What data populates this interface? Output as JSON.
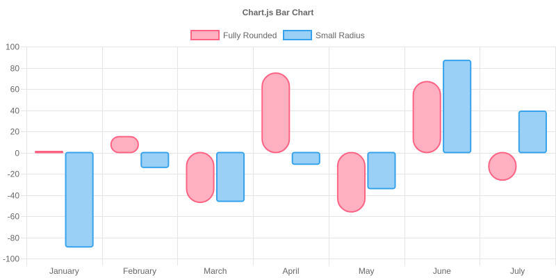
{
  "chart_data": {
    "type": "bar",
    "title": "Chart.js Bar Chart",
    "categories": [
      "January",
      "February",
      "March",
      "April",
      "May",
      "June",
      "July"
    ],
    "ylim": [
      -100,
      100
    ],
    "yticks": [
      100,
      80,
      60,
      40,
      20,
      0,
      -20,
      -40,
      -60,
      -80,
      -100
    ],
    "grid": true,
    "legend_position": "top",
    "series": [
      {
        "name": "Fully Rounded",
        "border_color": "#ff6384",
        "fill_color": "#ffb1c1",
        "values": [
          1,
          15,
          -47,
          75,
          -56,
          67,
          -26
        ]
      },
      {
        "name": "Small Radius",
        "border_color": "#36a2eb",
        "fill_color": "#9ad0f5",
        "values": [
          -89,
          -14,
          -46,
          -11,
          -34,
          87,
          39
        ]
      }
    ]
  }
}
